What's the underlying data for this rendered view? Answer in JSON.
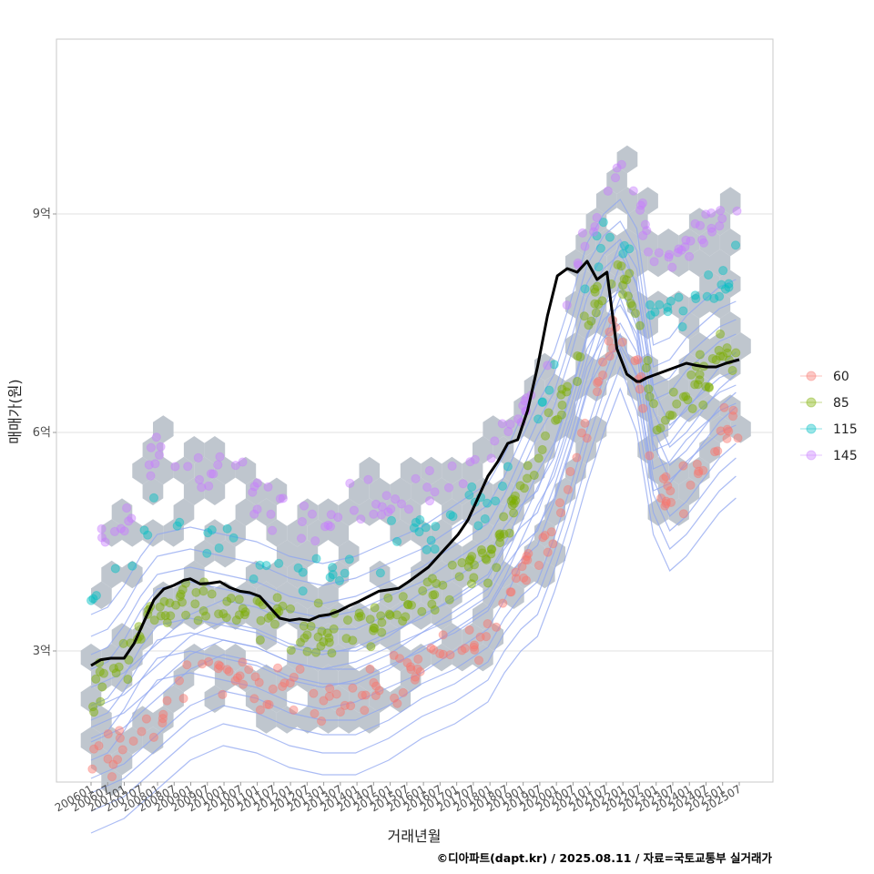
{
  "chart_data": {
    "type": "scatter",
    "title": "",
    "xlabel": "거래년월",
    "ylabel": "매매가(원)",
    "caption": "©디아파트(dapt.kr) / 2025.08.11 / 자료=국토교통부 실거래가",
    "y_unit": "억",
    "ylim": [
      1.2,
      11.4
    ],
    "y_ticks": [
      {
        "value": 3,
        "label": "3억"
      },
      {
        "value": 6,
        "label": "6억"
      },
      {
        "value": 9,
        "label": "9억"
      }
    ],
    "x_range": [
      2006.0,
      2025.6
    ],
    "x_ticks": [
      "200601",
      "200607",
      "200701",
      "200707",
      "200801",
      "200807",
      "200901",
      "200907",
      "201001",
      "201007",
      "201101",
      "201107",
      "201201",
      "201207",
      "201301",
      "201307",
      "201401",
      "201407",
      "201501",
      "201507",
      "201601",
      "201607",
      "201701",
      "201707",
      "201801",
      "201807",
      "201901",
      "201907",
      "202001",
      "202007",
      "202101",
      "202107",
      "202201",
      "202207",
      "202301",
      "202307",
      "202401",
      "202407",
      "202501",
      "202507"
    ],
    "legend": {
      "position": "right",
      "entries": [
        "60",
        "85",
        "115",
        "145"
      ]
    },
    "series_colors": {
      "60": "#F8766D",
      "85": "#7CAE00",
      "115": "#00BFC4",
      "145": "#C77CFF"
    },
    "bands": {
      "60": [
        [
          2006.0,
          1.5
        ],
        [
          2007.0,
          1.7
        ],
        [
          2008.0,
          2.1
        ],
        [
          2009.0,
          2.5
        ],
        [
          2010.0,
          2.7
        ],
        [
          2011.0,
          2.6
        ],
        [
          2012.0,
          2.4
        ],
        [
          2013.0,
          2.3
        ],
        [
          2014.0,
          2.3
        ],
        [
          2015.0,
          2.5
        ],
        [
          2016.0,
          2.8
        ],
        [
          2017.0,
          3.0
        ],
        [
          2018.0,
          3.3
        ],
        [
          2018.5,
          3.7
        ],
        [
          2019.0,
          4.0
        ],
        [
          2019.5,
          4.2
        ],
        [
          2020.0,
          4.8
        ],
        [
          2020.5,
          5.5
        ],
        [
          2021.0,
          6.3
        ],
        [
          2021.5,
          7.0
        ],
        [
          2022.0,
          7.6
        ],
        [
          2022.5,
          7.0
        ],
        [
          2023.0,
          5.6
        ],
        [
          2023.5,
          5.1
        ],
        [
          2024.0,
          5.3
        ],
        [
          2024.5,
          5.6
        ],
        [
          2025.0,
          5.9
        ],
        [
          2025.5,
          6.1
        ]
      ],
      "85": [
        [
          2006.0,
          2.5
        ],
        [
          2006.5,
          2.6
        ],
        [
          2007.0,
          2.9
        ],
        [
          2007.5,
          3.3
        ],
        [
          2008.0,
          3.6
        ],
        [
          2009.0,
          3.7
        ],
        [
          2010.0,
          3.6
        ],
        [
          2011.0,
          3.5
        ],
        [
          2012.0,
          3.3
        ],
        [
          2013.0,
          3.2
        ],
        [
          2014.0,
          3.3
        ],
        [
          2015.0,
          3.5
        ],
        [
          2016.0,
          3.7
        ],
        [
          2017.0,
          4.0
        ],
        [
          2018.0,
          4.3
        ],
        [
          2018.5,
          4.7
        ],
        [
          2019.0,
          5.2
        ],
        [
          2019.5,
          5.7
        ],
        [
          2020.0,
          6.1
        ],
        [
          2020.5,
          6.8
        ],
        [
          2021.0,
          7.6
        ],
        [
          2021.5,
          8.0
        ],
        [
          2022.0,
          8.2
        ],
        [
          2022.5,
          7.8
        ],
        [
          2023.0,
          6.2
        ],
        [
          2023.5,
          6.3
        ],
        [
          2024.0,
          6.6
        ],
        [
          2024.5,
          6.8
        ],
        [
          2025.0,
          7.0
        ],
        [
          2025.5,
          7.1
        ]
      ],
      "115": [
        [
          2006.0,
          3.6
        ],
        [
          2007.0,
          4.3
        ],
        [
          2008.0,
          4.8
        ],
        [
          2009.0,
          4.6
        ],
        [
          2010.0,
          4.5
        ],
        [
          2011.0,
          4.2
        ],
        [
          2012.0,
          4.1
        ],
        [
          2013.0,
          4.0
        ],
        [
          2014.0,
          4.2
        ],
        [
          2015.0,
          4.4
        ],
        [
          2016.0,
          4.6
        ],
        [
          2017.0,
          4.8
        ],
        [
          2018.0,
          5.0
        ],
        [
          2019.0,
          5.6
        ],
        [
          2020.0,
          6.6
        ],
        [
          2021.0,
          8.2
        ],
        [
          2022.0,
          8.8
        ],
        [
          2022.5,
          8.5
        ],
        [
          2023.0,
          7.7
        ],
        [
          2024.0,
          7.8
        ],
        [
          2025.0,
          8.0
        ],
        [
          2025.5,
          8.3
        ]
      ],
      "145": [
        [
          2006.0,
          4.2
        ],
        [
          2007.0,
          4.9
        ],
        [
          2008.0,
          5.6
        ],
        [
          2009.0,
          5.4
        ],
        [
          2010.0,
          5.3
        ],
        [
          2011.0,
          5.1
        ],
        [
          2012.0,
          4.9
        ],
        [
          2013.0,
          4.8
        ],
        [
          2014.0,
          4.9
        ],
        [
          2015.0,
          5.0
        ],
        [
          2016.0,
          5.2
        ],
        [
          2017.0,
          5.4
        ],
        [
          2018.0,
          5.6
        ],
        [
          2019.0,
          6.2
        ],
        [
          2020.0,
          7.2
        ],
        [
          2021.0,
          8.8
        ],
        [
          2022.0,
          9.6
        ],
        [
          2022.5,
          9.3
        ],
        [
          2023.0,
          8.4
        ],
        [
          2024.0,
          8.6
        ],
        [
          2025.0,
          8.9
        ],
        [
          2025.5,
          9.2
        ]
      ]
    },
    "point_counts": {
      "60": 170,
      "85": 240,
      "115": 90,
      "145": 130
    },
    "hexbin": {
      "color": "#BFC6CE",
      "radius_years": 0.36,
      "radius_value": 0.19
    },
    "contour_color": "#8FA6F0",
    "median_line": {
      "color": "#000000",
      "x": [
        2006.0,
        2006.3,
        2006.6,
        2007.0,
        2007.3,
        2007.6,
        2007.9,
        2008.2,
        2008.5,
        2008.8,
        2009.0,
        2009.3,
        2009.6,
        2009.9,
        2010.2,
        2010.5,
        2010.8,
        2011.1,
        2011.4,
        2011.7,
        2012.0,
        2012.3,
        2012.6,
        2012.9,
        2013.2,
        2013.5,
        2013.8,
        2014.1,
        2014.4,
        2014.7,
        2015.0,
        2015.3,
        2015.6,
        2015.9,
        2016.2,
        2016.5,
        2016.8,
        2017.1,
        2017.4,
        2017.7,
        2018.0,
        2018.3,
        2018.6,
        2018.9,
        2019.2,
        2019.5,
        2019.8,
        2020.1,
        2020.4,
        2020.7,
        2021.0,
        2021.3,
        2021.6,
        2021.9,
        2022.2,
        2022.35,
        2022.5,
        2022.6,
        2022.8,
        2023.1,
        2023.4,
        2023.7,
        2024.0,
        2024.3,
        2024.6,
        2024.9,
        2025.2,
        2025.6
      ],
      "y": [
        2.8,
        2.88,
        2.9,
        2.9,
        3.1,
        3.4,
        3.7,
        3.85,
        3.9,
        3.97,
        3.99,
        3.92,
        3.93,
        3.95,
        3.87,
        3.82,
        3.8,
        3.75,
        3.6,
        3.45,
        3.42,
        3.44,
        3.42,
        3.48,
        3.5,
        3.55,
        3.62,
        3.68,
        3.75,
        3.82,
        3.84,
        3.86,
        3.95,
        4.05,
        4.15,
        4.3,
        4.45,
        4.6,
        4.8,
        5.1,
        5.4,
        5.6,
        5.85,
        5.9,
        6.3,
        6.9,
        7.6,
        8.15,
        8.25,
        8.2,
        8.35,
        8.1,
        8.2,
        7.15,
        6.8,
        6.75,
        6.7,
        6.7,
        6.75,
        6.8,
        6.85,
        6.9,
        6.95,
        6.92,
        6.9,
        6.9,
        6.95,
        7.0
      ]
    }
  }
}
